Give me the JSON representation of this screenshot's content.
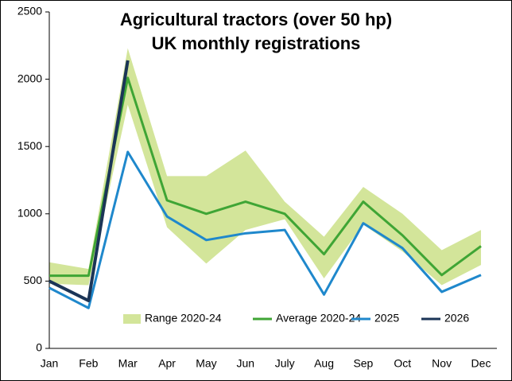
{
  "chart_data": {
    "type": "line",
    "title": "Agricultural tractors (over 50 hp)",
    "subtitle": "UK monthly registrations",
    "categories": [
      "Jan",
      "Feb",
      "Mar",
      "Apr",
      "May",
      "Jun",
      "July",
      "Aug",
      "Sep",
      "Oct",
      "Nov",
      "Dec"
    ],
    "ylim": [
      0,
      2500
    ],
    "yticks": [
      0,
      500,
      1000,
      1500,
      2000,
      2500
    ],
    "grid": false,
    "legend": "bottom",
    "band": {
      "name": "Range 2020-24",
      "color": "#d3e59a",
      "low": [
        480,
        470,
        1810,
        900,
        630,
        880,
        960,
        520,
        920,
        720,
        470,
        620
      ],
      "high": [
        640,
        590,
        2230,
        1280,
        1280,
        1470,
        1090,
        830,
        1200,
        1000,
        730,
        880
      ]
    },
    "series": [
      {
        "name": "Average 2020-24",
        "color": "#3fa535",
        "values": [
          540,
          540,
          2010,
          1100,
          1000,
          1090,
          1000,
          700,
          1090,
          840,
          545,
          760
        ]
      },
      {
        "name": "2025",
        "color": "#1f88cc",
        "values": [
          450,
          300,
          1460,
          980,
          805,
          855,
          880,
          400,
          930,
          745,
          420,
          545
        ]
      },
      {
        "name": "2026",
        "color": "#1b3557",
        "values": [
          500,
          355,
          2140,
          null,
          null,
          null,
          null,
          null,
          null,
          null,
          null,
          null
        ]
      }
    ]
  }
}
